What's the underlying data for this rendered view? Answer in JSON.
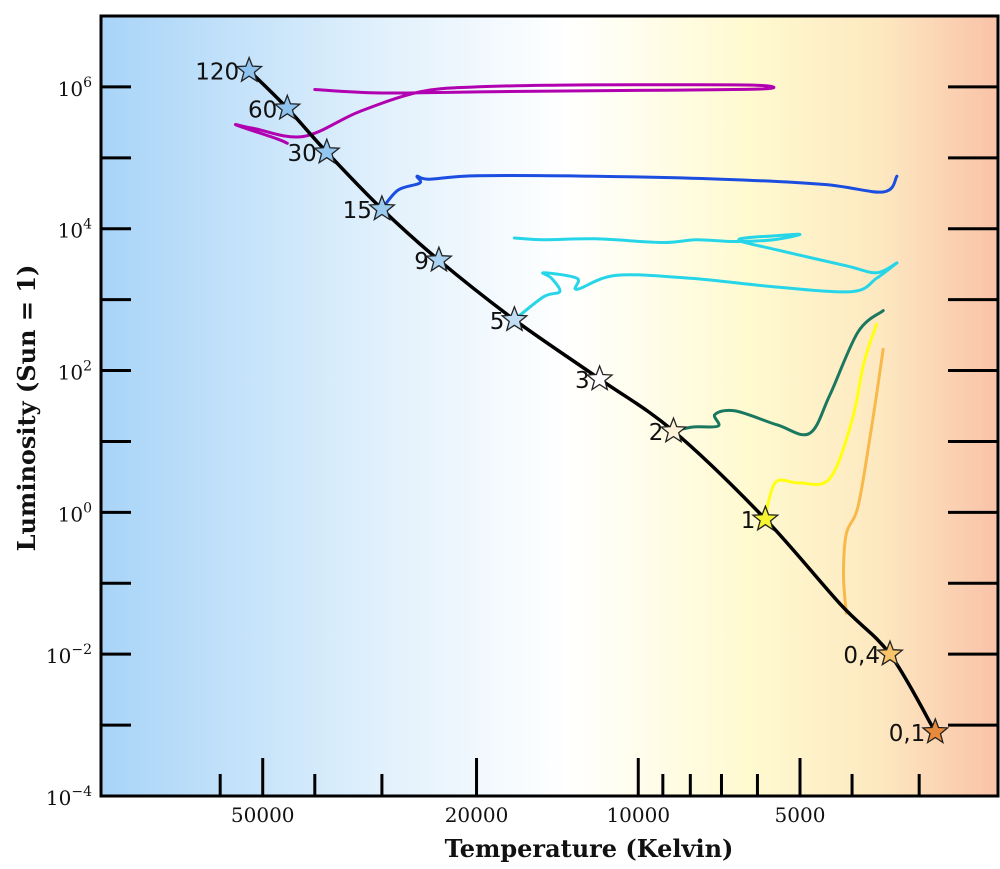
{
  "chart_data": {
    "type": "line",
    "title": "",
    "xlabel": "Temperature (Kelvin)",
    "ylabel": "Luminosity (Sun = 1)",
    "x_scale": "log",
    "x_reversed": true,
    "y_scale": "log",
    "xlim": [
      100000,
      2140
    ],
    "ylim": [
      0.0001,
      10000000
    ],
    "x_major_ticks": [
      {
        "value": 50000,
        "label": "50000"
      },
      {
        "value": 20000,
        "label": "20000"
      },
      {
        "value": 10000,
        "label": "10000"
      },
      {
        "value": 5000,
        "label": "5000"
      }
    ],
    "x_minor_ticks": [
      60000,
      40000,
      30000,
      9000,
      8000,
      7000,
      6000,
      4000,
      3000
    ],
    "y_major_ticks": [
      {
        "value": 1000000,
        "base": "10",
        "exp": "6"
      },
      {
        "value": 10000,
        "base": "10",
        "exp": "4"
      },
      {
        "value": 100,
        "base": "10",
        "exp": "2"
      },
      {
        "value": 1,
        "base": "10",
        "exp": "0"
      },
      {
        "value": 0.01,
        "base": "10",
        "exp": "−2"
      },
      {
        "value": 0.0001,
        "base": "10",
        "exp": "−4"
      }
    ],
    "y_minor_ticks": [
      100000,
      1000,
      10,
      0.1,
      0.001
    ],
    "background_gradient": [
      "#a8d4f8",
      "#e2f1fc",
      "#ffffff",
      "#fffad0",
      "#fde8c0",
      "#f9c2a8"
    ],
    "grid": false,
    "main_sequence": {
      "color": "#000000",
      "points": [
        {
          "T": 53000,
          "L": 1700000
        },
        {
          "T": 45000,
          "L": 500000
        },
        {
          "T": 38000,
          "L": 120000
        },
        {
          "T": 30000,
          "L": 19000
        },
        {
          "T": 23500,
          "L": 3600
        },
        {
          "T": 17000,
          "L": 520
        },
        {
          "T": 11800,
          "L": 76
        },
        {
          "T": 8600,
          "L": 14
        },
        {
          "T": 5800,
          "L": 0.8
        },
        {
          "T": 4200,
          "L": 0.05
        },
        {
          "T": 3400,
          "L": 0.01
        },
        {
          "T": 2800,
          "L": 0.0008
        }
      ]
    },
    "stars": [
      {
        "label": "120",
        "T": 53000,
        "L": 1700000,
        "color": "#8fc3ef"
      },
      {
        "label": "60",
        "T": 45000,
        "L": 500000,
        "color": "#8fc3ef"
      },
      {
        "label": "30",
        "T": 38000,
        "L": 120000,
        "color": "#94c7ef"
      },
      {
        "label": "15",
        "T": 30000,
        "L": 19000,
        "color": "#9ccbf0"
      },
      {
        "label": "9",
        "T": 23500,
        "L": 3600,
        "color": "#a9d2f2"
      },
      {
        "label": "5",
        "T": 17000,
        "L": 520,
        "color": "#c1def5"
      },
      {
        "label": "3",
        "T": 11800,
        "L": 76,
        "color": "#ffffff"
      },
      {
        "label": "2",
        "T": 8600,
        "L": 14,
        "color": "#fdf1d8"
      },
      {
        "label": "1",
        "T": 5800,
        "L": 0.8,
        "color": "#f5f532"
      },
      {
        "label": "0,4",
        "T": 3400,
        "L": 0.01,
        "color": "#f8c46a"
      },
      {
        "label": "0,1",
        "T": 2800,
        "L": 0.0008,
        "color": "#e88a3c"
      }
    ],
    "series": [
      {
        "mass": "120",
        "color": "#b000b0",
        "points": [
          {
            "T": 45000,
            "L": 160000
          },
          {
            "T": 47000,
            "L": 185000
          },
          {
            "T": 56000,
            "L": 290000
          },
          {
            "T": 52000,
            "L": 260000
          },
          {
            "T": 42000,
            "L": 200000
          },
          {
            "T": 33000,
            "L": 450000
          },
          {
            "T": 25500,
            "L": 850000
          },
          {
            "T": 20000,
            "L": 1000000
          },
          {
            "T": 14000,
            "L": 1060000
          },
          {
            "T": 10000,
            "L": 1070000
          },
          {
            "T": 6100,
            "L": 1060000
          },
          {
            "T": 5800,
            "L": 940000
          },
          {
            "T": 9000,
            "L": 900000
          },
          {
            "T": 18000,
            "L": 860000
          },
          {
            "T": 30000,
            "L": 820000
          },
          {
            "T": 40000,
            "L": 920000
          }
        ]
      },
      {
        "mass": "15",
        "color": "#1a4de0",
        "points": [
          {
            "T": 30000,
            "L": 19000
          },
          {
            "T": 28000,
            "L": 35000
          },
          {
            "T": 25500,
            "L": 44000
          },
          {
            "T": 25800,
            "L": 55000
          },
          {
            "T": 24500,
            "L": 50000
          },
          {
            "T": 20000,
            "L": 56000
          },
          {
            "T": 12000,
            "L": 55000
          },
          {
            "T": 7000,
            "L": 50000
          },
          {
            "T": 4500,
            "L": 42000
          },
          {
            "T": 3500,
            "L": 33000
          },
          {
            "T": 3300,
            "L": 55000
          }
        ]
      },
      {
        "mass": "9",
        "color": "#26d6e8",
        "points": [
          {
            "T": 17000,
            "L": 7400
          },
          {
            "T": 15000,
            "L": 7000
          },
          {
            "T": 12000,
            "L": 7200
          },
          {
            "T": 9000,
            "L": 6400
          },
          {
            "T": 7800,
            "L": 7000
          },
          {
            "T": 6600,
            "L": 6600
          },
          {
            "T": 5600,
            "L": 7000
          },
          {
            "T": 5000,
            "L": 8300
          },
          {
            "T": 5500,
            "L": 8000
          },
          {
            "T": 6500,
            "L": 7000
          },
          {
            "T": 5500,
            "L": 5000
          },
          {
            "T": 4100,
            "L": 3000
          },
          {
            "T": 3600,
            "L": 2400
          },
          {
            "T": 3300,
            "L": 3300
          }
        ]
      },
      {
        "mass": "5",
        "color": "#26d6e8",
        "points": [
          {
            "T": 17000,
            "L": 520
          },
          {
            "T": 15000,
            "L": 1100
          },
          {
            "T": 14000,
            "L": 1300
          },
          {
            "T": 14500,
            "L": 2000
          },
          {
            "T": 15000,
            "L": 2400
          },
          {
            "T": 13000,
            "L": 2000
          },
          {
            "T": 13000,
            "L": 1400
          },
          {
            "T": 11000,
            "L": 2200
          },
          {
            "T": 8000,
            "L": 2000
          },
          {
            "T": 5500,
            "L": 1500
          },
          {
            "T": 4000,
            "L": 1300
          },
          {
            "T": 3600,
            "L": 2000
          },
          {
            "T": 3300,
            "L": 3300
          }
        ]
      },
      {
        "mass": "2",
        "color": "#1a7860",
        "points": [
          {
            "T": 8600,
            "L": 14
          },
          {
            "T": 7900,
            "L": 16
          },
          {
            "T": 7100,
            "L": 16.5
          },
          {
            "T": 7200,
            "L": 24
          },
          {
            "T": 6600,
            "L": 27
          },
          {
            "T": 5500,
            "L": 17
          },
          {
            "T": 4800,
            "L": 13
          },
          {
            "T": 4400,
            "L": 45
          },
          {
            "T": 3900,
            "L": 350
          },
          {
            "T": 3500,
            "L": 700
          }
        ]
      },
      {
        "mass": "1",
        "color": "#ffff10",
        "points": [
          {
            "T": 5800,
            "L": 0.8
          },
          {
            "T": 5700,
            "L": 1.6
          },
          {
            "T": 5500,
            "L": 2.8
          },
          {
            "T": 5000,
            "L": 2.6
          },
          {
            "T": 4400,
            "L": 3.0
          },
          {
            "T": 4000,
            "L": 20
          },
          {
            "T": 3800,
            "L": 130
          },
          {
            "T": 3600,
            "L": 450
          }
        ]
      },
      {
        "mass": "0,4",
        "color": "#f8b84a",
        "points": [
          {
            "T": 4100,
            "L": 0.038
          },
          {
            "T": 4150,
            "L": 0.13
          },
          {
            "T": 4100,
            "L": 0.5
          },
          {
            "T": 3900,
            "L": 1.2
          },
          {
            "T": 3700,
            "L": 12
          },
          {
            "T": 3500,
            "L": 200
          }
        ]
      }
    ]
  }
}
